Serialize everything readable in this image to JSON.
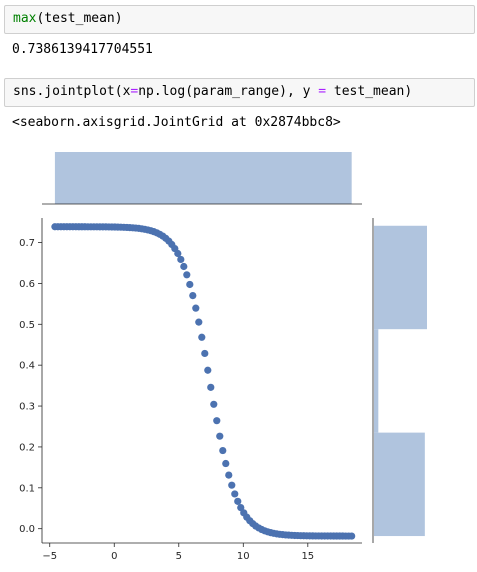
{
  "cells": [
    {
      "input": {
        "fn": "max",
        "args": "(test_mean)"
      },
      "output": "0.7386139417704551"
    },
    {
      "input": {
        "p1": "sns.jointplot(x",
        "eq1": "=",
        "p2": "np.log(param_range), y ",
        "eq2": "=",
        "p3": " test_mean)"
      },
      "output": "<seaborn.axisgrid.JointGrid at 0x2874bbc8>"
    }
  ],
  "chart_data": {
    "type": "scatter",
    "colors": {
      "points": "#4c72b0",
      "hist": "#b0c4de"
    },
    "xlim": [
      -5.6,
      19.2
    ],
    "ylim": [
      -0.035,
      0.76
    ],
    "xticks": [
      -5,
      0,
      5,
      10,
      15
    ],
    "yticks": [
      0.0,
      0.1,
      0.2,
      0.3,
      0.4,
      0.5,
      0.6,
      0.7
    ],
    "xtick_labels": [
      "−5",
      "0",
      "5",
      "10",
      "15"
    ],
    "ytick_labels": [
      "0.0",
      "0.1",
      "0.2",
      "0.3",
      "0.4",
      "0.5",
      "0.6",
      "0.7"
    ],
    "x_range": [
      -4.6,
      18.4
    ],
    "n_points": 100,
    "curve": {
      "max": 0.7386,
      "min": -0.018,
      "midpoint": 7.4,
      "scale": 1.05
    },
    "marginal_x_hist": {
      "bin_edges": [
        -4.6,
        18.4
      ],
      "counts": [
        100
      ]
    },
    "marginal_y_hist": {
      "bins": [
        {
          "from": -0.018,
          "to": 0.235,
          "count": 47
        },
        {
          "from": 0.235,
          "to": 0.488,
          "count": 4
        },
        {
          "from": 0.488,
          "to": 0.741,
          "count": 49
        }
      ]
    }
  }
}
